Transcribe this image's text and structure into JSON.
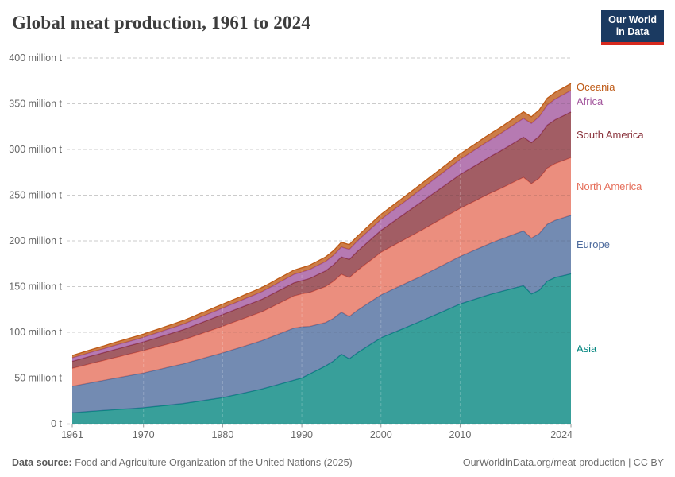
{
  "header": {
    "title": "Global meat production, 1961 to 2024",
    "logo": {
      "line1": "Our World",
      "line2": "in Data"
    }
  },
  "footer": {
    "source_label": "Data source:",
    "source_text": " Food and Agriculture Organization of the United Nations (2025)",
    "link_text": "OurWorldinData.org/meat-production | CC BY"
  },
  "colors": {
    "logo_navy": "#1B3A61",
    "logo_red": "#D7291E",
    "title_text": "#3d3d3d",
    "grid": "#dcdcdc",
    "grid_overlay": "rgba(90,90,90,0.13)",
    "grid_overlay_vertical": "rgba(255,255,255,0.22)",
    "axis_text": "#666666",
    "tick_mark": "#999999"
  },
  "chart_data": {
    "type": "area",
    "stacked": true,
    "title": "Global meat production, 1961 to 2024",
    "xlabel": "",
    "ylabel": "",
    "unit": "million t",
    "grid": true,
    "legend_position": "right-of-plot",
    "xlim": [
      1961,
      2024
    ],
    "ylim": [
      0,
      400
    ],
    "x_ticks": [
      1961,
      1970,
      1980,
      1990,
      2000,
      2010,
      2024
    ],
    "y_ticks": [
      0,
      50,
      100,
      150,
      200,
      250,
      300,
      350,
      400
    ],
    "y_tick_labels": [
      "0 t",
      "50 million t",
      "100 million t",
      "150 million t",
      "200 million t",
      "250 million t",
      "300 million t",
      "350 million t",
      "400 million t"
    ],
    "fill_opacity": 0.78,
    "x": [
      1961,
      1962,
      1963,
      1964,
      1965,
      1966,
      1967,
      1968,
      1969,
      1970,
      1971,
      1972,
      1973,
      1974,
      1975,
      1976,
      1977,
      1978,
      1979,
      1980,
      1981,
      1982,
      1983,
      1984,
      1985,
      1986,
      1987,
      1988,
      1989,
      1990,
      1991,
      1992,
      1993,
      1994,
      1995,
      1996,
      1997,
      1998,
      1999,
      2000,
      2001,
      2002,
      2003,
      2004,
      2005,
      2006,
      2007,
      2008,
      2009,
      2010,
      2011,
      2012,
      2013,
      2014,
      2015,
      2016,
      2017,
      2018,
      2019,
      2020,
      2021,
      2022,
      2023,
      2024
    ],
    "series": [
      {
        "name": "Asia",
        "color": "#00847E",
        "values": [
          12.0,
          12.6,
          13.3,
          13.9,
          14.5,
          15.1,
          15.7,
          16.3,
          16.9,
          17.5,
          18.4,
          19.3,
          20.2,
          21.1,
          22.0,
          23.3,
          24.6,
          25.9,
          27.2,
          28.5,
          30.4,
          32.3,
          34.2,
          36.1,
          38.0,
          40.4,
          42.8,
          45.2,
          47.6,
          50.0,
          54.4,
          58.8,
          63.2,
          68.5,
          76.0,
          71.0,
          77.5,
          83.0,
          88.5,
          94.0,
          97.6,
          101.2,
          104.8,
          108.4,
          112.0,
          115.8,
          119.6,
          123.4,
          127.2,
          131.0,
          133.8,
          136.5,
          139.3,
          142.0,
          144.3,
          146.5,
          148.8,
          151.0,
          142.0,
          146.0,
          156.0,
          160.0,
          162.0,
          164.0
        ]
      },
      {
        "name": "Europe",
        "color": "#4C6A9C",
        "values": [
          29.0,
          30.0,
          31.0,
          32.0,
          33.0,
          34.0,
          35.0,
          36.0,
          37.0,
          38.0,
          39.1,
          40.2,
          41.3,
          42.4,
          43.5,
          44.6,
          45.7,
          46.8,
          47.9,
          49.0,
          49.8,
          50.6,
          51.4,
          52.2,
          53.0,
          54.0,
          55.0,
          56.0,
          57.0,
          56.0,
          52.0,
          49.8,
          47.5,
          46.8,
          46.0,
          46.2,
          46.4,
          46.6,
          46.8,
          47.0,
          47.4,
          47.8,
          48.2,
          48.6,
          49.0,
          49.6,
          50.2,
          50.8,
          51.4,
          52.0,
          53.0,
          54.0,
          55.0,
          56.0,
          57.0,
          58.0,
          59.0,
          60.0,
          61.0,
          62.0,
          62.3,
          62.5,
          63.2,
          64.0
        ]
      },
      {
        "name": "North America",
        "color": "#E56E5A",
        "values": [
          19.5,
          20.1,
          20.6,
          21.2,
          21.7,
          22.3,
          22.8,
          23.4,
          23.9,
          24.5,
          24.8,
          25.1,
          25.4,
          25.7,
          26.0,
          26.6,
          27.2,
          27.8,
          28.4,
          29.0,
          29.5,
          30.0,
          30.5,
          31.0,
          31.5,
          32.4,
          33.3,
          34.2,
          35.1,
          36.0,
          37.1,
          38.2,
          39.3,
          40.4,
          41.5,
          42.5,
          43.5,
          44.5,
          45.5,
          46.5,
          47.2,
          47.9,
          48.6,
          49.3,
          50.0,
          50.5,
          51.0,
          51.5,
          52.0,
          52.5,
          53.1,
          53.7,
          54.3,
          54.9,
          55.5,
          56.5,
          57.5,
          58.5,
          59.5,
          60.5,
          61.3,
          62.0,
          62.5,
          63.0
        ]
      },
      {
        "name": "South America",
        "color": "#883039",
        "values": [
          7.8,
          8.0,
          8.2,
          8.4,
          8.6,
          8.8,
          9.0,
          9.2,
          9.3,
          9.5,
          9.9,
          10.2,
          10.6,
          10.9,
          11.3,
          11.6,
          12.0,
          12.3,
          12.7,
          13.0,
          13.2,
          13.3,
          13.5,
          13.6,
          13.8,
          13.9,
          14.1,
          14.2,
          14.4,
          14.5,
          15.4,
          16.3,
          17.2,
          18.1,
          19.0,
          20.0,
          21.0,
          22.0,
          23.0,
          24.0,
          25.4,
          26.8,
          28.2,
          29.6,
          31.0,
          32.2,
          33.4,
          34.6,
          35.8,
          37.0,
          37.8,
          38.6,
          39.4,
          40.2,
          41.0,
          42.0,
          43.0,
          44.0,
          45.0,
          46.0,
          47.0,
          48.0,
          49.0,
          50.0
        ]
      },
      {
        "name": "Africa",
        "color": "#A2559C",
        "values": [
          3.8,
          3.9,
          4.1,
          4.2,
          4.3,
          4.5,
          4.6,
          4.7,
          4.9,
          5.0,
          5.2,
          5.4,
          5.6,
          5.8,
          6.0,
          6.2,
          6.4,
          6.6,
          6.8,
          7.0,
          7.3,
          7.5,
          7.8,
          8.0,
          8.3,
          8.5,
          8.8,
          9.0,
          9.3,
          9.5,
          9.8,
          10.0,
          10.3,
          10.5,
          10.8,
          11.0,
          11.3,
          11.5,
          11.8,
          12.0,
          12.4,
          12.8,
          13.2,
          13.6,
          14.0,
          14.5,
          15.0,
          15.5,
          16.0,
          16.5,
          17.0,
          17.5,
          18.0,
          18.5,
          19.0,
          19.5,
          20.0,
          20.5,
          21.0,
          21.5,
          22.0,
          22.5,
          23.0,
          23.5
        ]
      },
      {
        "name": "Oceania",
        "color": "#BE5915",
        "values": [
          2.6,
          2.7,
          2.8,
          2.9,
          3.0,
          3.2,
          3.3,
          3.4,
          3.5,
          3.6,
          3.7,
          3.7,
          3.8,
          3.9,
          4.0,
          4.0,
          4.1,
          4.1,
          4.2,
          4.3,
          4.3,
          4.3,
          4.4,
          4.5,
          4.5,
          4.5,
          4.6,
          4.6,
          4.6,
          4.6,
          4.7,
          4.8,
          4.9,
          5.0,
          5.1,
          5.1,
          5.2,
          5.3,
          5.4,
          5.5,
          5.6,
          5.6,
          5.7,
          5.7,
          5.8,
          5.8,
          5.9,
          5.9,
          6.0,
          6.0,
          6.2,
          6.3,
          6.5,
          6.6,
          6.8,
          6.9,
          7.0,
          7.1,
          7.2,
          7.3,
          7.4,
          7.4,
          7.5,
          7.5
        ]
      }
    ]
  }
}
